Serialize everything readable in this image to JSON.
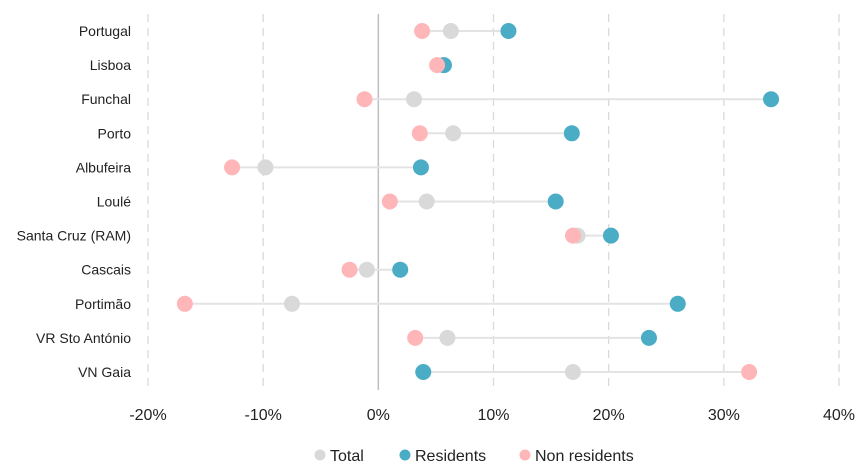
{
  "chart_data": {
    "type": "dot_plot",
    "categories": [
      "Portugal",
      "Lisboa",
      "Funchal",
      "Porto",
      "Albufeira",
      "Loulé",
      "Santa Cruz (RAM)",
      "Cascais",
      "Portimão",
      "VR Sto António",
      "VN Gaia"
    ],
    "series": [
      {
        "name": "Total",
        "color": "#d9d9d9",
        "values": [
          6.3,
          5.6,
          3.1,
          6.5,
          -9.8,
          4.2,
          17.3,
          -1.0,
          -7.5,
          6.0,
          16.9
        ]
      },
      {
        "name": "Residents",
        "color": "#4bacc6",
        "values": [
          11.3,
          5.7,
          34.1,
          16.8,
          3.7,
          15.4,
          20.2,
          1.9,
          26.0,
          23.5,
          3.9
        ]
      },
      {
        "name": "Non residents",
        "color": "#ffb6b9",
        "values": [
          3.8,
          5.1,
          -1.2,
          3.6,
          -12.7,
          1.0,
          16.9,
          -2.5,
          -16.8,
          3.2,
          32.2
        ]
      }
    ],
    "xlim": [
      -20,
      40
    ],
    "xticks": [
      -20,
      -10,
      0,
      10,
      20,
      30,
      40
    ],
    "xtick_labels": [
      "-20%",
      "-10%",
      "0%",
      "10%",
      "20%",
      "30%",
      "40%"
    ],
    "grid": "vertical dashed",
    "legend_position": "bottom",
    "title": "",
    "xlabel": "",
    "ylabel": ""
  }
}
